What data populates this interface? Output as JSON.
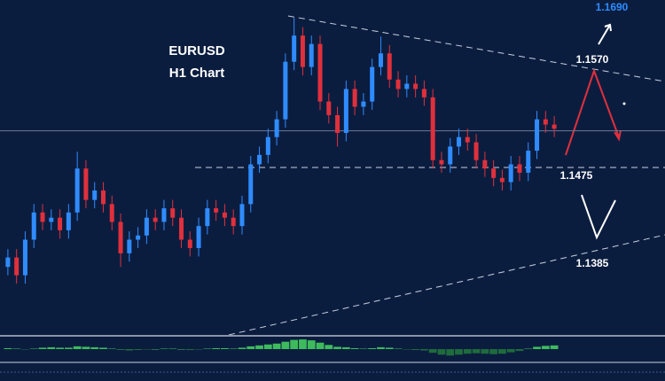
{
  "chart_data": {
    "type": "candlestick",
    "title": "EURUSD",
    "subtitle": "H1 Chart",
    "ylim": [
      1.1315,
      1.1635
    ],
    "open": [
      1.138,
      1.1389,
      1.1372,
      1.1406,
      1.1432,
      1.1423,
      1.1427,
      1.1415,
      1.1432,
      1.1474,
      1.1444,
      1.1453,
      1.144,
      1.1423,
      1.1393,
      1.1406,
      1.141,
      1.1427,
      1.1423,
      1.1436,
      1.1427,
      1.1406,
      1.1398,
      1.1419,
      1.1436,
      1.1432,
      1.1427,
      1.1419,
      1.144,
      1.1478,
      1.1487,
      1.1504,
      1.1521,
      1.1576,
      1.1601,
      1.1571,
      1.1593,
      1.1538,
      1.1525,
      1.1508,
      1.155,
      1.1533,
      1.1538,
      1.1571,
      1.1584,
      1.1559,
      1.155,
      1.1555,
      1.155,
      1.1542,
      1.1482,
      1.1478,
      1.1495,
      1.1504,
      1.1499,
      1.1482,
      1.1474,
      1.1465,
      1.1461,
      1.1478,
      1.147,
      1.1491,
      1.1521,
      1.1516
    ],
    "high": [
      1.1397,
      1.1397,
      1.1414,
      1.144,
      1.144,
      1.1435,
      1.1435,
      1.144,
      1.149,
      1.1482,
      1.1461,
      1.1461,
      1.1448,
      1.1431,
      1.1414,
      1.1418,
      1.1435,
      1.1435,
      1.1444,
      1.1444,
      1.1435,
      1.1414,
      1.1427,
      1.1444,
      1.1444,
      1.144,
      1.1435,
      1.1448,
      1.1486,
      1.1495,
      1.1512,
      1.1529,
      1.1584,
      1.1618,
      1.1609,
      1.1601,
      1.1601,
      1.1546,
      1.1533,
      1.1558,
      1.1558,
      1.1546,
      1.1579,
      1.16,
      1.1592,
      1.1567,
      1.1563,
      1.1563,
      1.1558,
      1.155,
      1.149,
      1.1503,
      1.1512,
      1.1512,
      1.1507,
      1.149,
      1.1482,
      1.1473,
      1.1486,
      1.1486,
      1.1499,
      1.1529,
      1.1529,
      1.1524
    ],
    "low": [
      1.1372,
      1.1364,
      1.1364,
      1.1398,
      1.1415,
      1.1415,
      1.1407,
      1.1407,
      1.1424,
      1.1436,
      1.1436,
      1.1432,
      1.1415,
      1.138,
      1.1385,
      1.1398,
      1.1402,
      1.1415,
      1.1415,
      1.1419,
      1.1398,
      1.139,
      1.139,
      1.1411,
      1.1424,
      1.1419,
      1.1411,
      1.1411,
      1.1432,
      1.147,
      1.1479,
      1.1496,
      1.1513,
      1.1568,
      1.1563,
      1.1563,
      1.153,
      1.1517,
      1.1495,
      1.15,
      1.1525,
      1.1525,
      1.153,
      1.1563,
      1.1551,
      1.1542,
      1.1542,
      1.1542,
      1.1534,
      1.1474,
      1.147,
      1.147,
      1.1487,
      1.1491,
      1.1474,
      1.1466,
      1.1457,
      1.1453,
      1.1453,
      1.1462,
      1.1462,
      1.1483,
      1.1508,
      1.1504
    ],
    "close": [
      1.1389,
      1.1372,
      1.1406,
      1.1432,
      1.1423,
      1.1427,
      1.1415,
      1.1432,
      1.1474,
      1.1444,
      1.1453,
      1.144,
      1.1423,
      1.1393,
      1.1406,
      1.141,
      1.1427,
      1.1423,
      1.1436,
      1.1427,
      1.1406,
      1.1398,
      1.1419,
      1.1436,
      1.1432,
      1.1427,
      1.1419,
      1.144,
      1.1478,
      1.1487,
      1.1504,
      1.1521,
      1.1576,
      1.1601,
      1.1571,
      1.1593,
      1.1538,
      1.1525,
      1.1508,
      1.155,
      1.1533,
      1.1538,
      1.1571,
      1.1584,
      1.1559,
      1.155,
      1.1555,
      1.155,
      1.1542,
      1.1482,
      1.1478,
      1.1495,
      1.1504,
      1.1499,
      1.1482,
      1.1474,
      1.1465,
      1.1461,
      1.1478,
      1.147,
      1.1491,
      1.1521,
      1.1516,
      1.1512
    ],
    "up_color": "#2f8cff",
    "down_color": "#e0303c",
    "price_line": 1.151,
    "annotations": [
      {
        "value": 1.169,
        "label": "1.1690"
      },
      {
        "value": 1.157,
        "label": "1.1570"
      },
      {
        "value": 1.1475,
        "label": "1.1475"
      },
      {
        "value": 1.1385,
        "label": "1.1385"
      }
    ],
    "indicator": {
      "type": "bar",
      "ylim": [
        -2.5,
        2.5
      ],
      "up_color": "#3dbb5c",
      "down_color": "#1f6b3c",
      "values": [
        0.2,
        0.1,
        -0.1,
        0.1,
        0.3,
        0.4,
        0.3,
        0.3,
        0.6,
        0.5,
        0.4,
        0.3,
        0.1,
        -0.2,
        -0.3,
        -0.2,
        -0.1,
        0,
        0.1,
        0.1,
        0,
        -0.2,
        -0.1,
        0.1,
        0.2,
        0.2,
        0.1,
        0.3,
        0.6,
        0.8,
        1.0,
        1.2,
        1.6,
        2.0,
        2.1,
        1.9,
        1.4,
        0.9,
        0.5,
        0.4,
        0.2,
        0.1,
        0.2,
        0.4,
        0.3,
        0.1,
        -0.1,
        -0.2,
        -0.3,
        -0.8,
        -1.2,
        -1.4,
        -1.2,
        -1.0,
        -0.9,
        -1.0,
        -1.1,
        -1.0,
        -0.7,
        -0.4,
        0.1,
        0.5,
        0.7,
        0.8
      ]
    }
  }
}
